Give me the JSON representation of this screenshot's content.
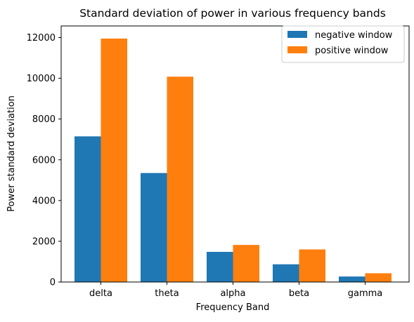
{
  "chart_data": {
    "type": "bar",
    "title": "Standard deviation of power in various frequency bands",
    "xlabel": "Frequency Band",
    "ylabel": "Power standard deviation",
    "categories": [
      "delta",
      "theta",
      "alpha",
      "beta",
      "gamma"
    ],
    "series": [
      {
        "name": "negative window",
        "color": "#1f77b4",
        "values": [
          7150,
          5350,
          1480,
          870,
          270
        ]
      },
      {
        "name": "positive window",
        "color": "#ff7f0e",
        "values": [
          11950,
          10080,
          1820,
          1600,
          430
        ]
      }
    ],
    "ylim": [
      0,
      12570
    ],
    "yticks": [
      0,
      2000,
      4000,
      6000,
      8000,
      10000,
      12000
    ],
    "grid": false,
    "legend_position": "top-right"
  }
}
